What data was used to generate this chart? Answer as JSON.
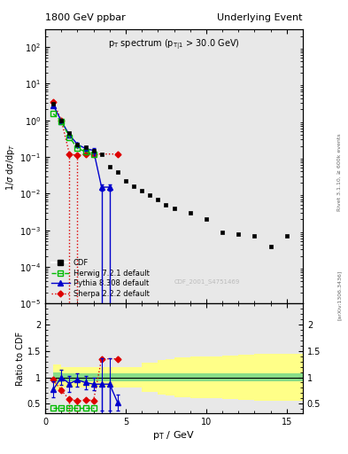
{
  "title_left": "1800 GeV ppbar",
  "title_right": "Underlying Event",
  "main_title": "p_{T} spectrum (p_{T|1} > 30.0 GeV)",
  "xlabel": "p_{T} / GeV",
  "ylabel_main": "1/σ dσ/dp_{T}",
  "ylabel_ratio": "Ratio to CDF",
  "watermark": "CDF_2001_S4751469",
  "cdf_x": [
    0.5,
    1.0,
    1.5,
    2.0,
    2.5,
    3.0,
    3.5,
    4.0,
    4.5,
    5.0,
    5.5,
    6.0,
    6.5,
    7.0,
    7.5,
    8.0,
    9.0,
    10.0,
    11.0,
    12.0,
    13.0,
    14.0,
    15.0
  ],
  "cdf_y": [
    2.8,
    1.0,
    0.45,
    0.22,
    0.18,
    0.15,
    0.12,
    0.055,
    0.038,
    0.022,
    0.016,
    0.012,
    0.009,
    0.007,
    0.005,
    0.004,
    0.003,
    0.002,
    0.0009,
    0.0008,
    0.0007,
    0.00035,
    0.0007
  ],
  "herwig_x": [
    0.5,
    1.0,
    1.5,
    2.0,
    2.5,
    3.0
  ],
  "herwig_y": [
    1.5,
    0.95,
    0.35,
    0.17,
    0.14,
    0.12
  ],
  "pythia_x": [
    0.5,
    1.0,
    1.5,
    2.0,
    2.5,
    3.0,
    3.5,
    4.0
  ],
  "pythia_y": [
    2.6,
    0.95,
    0.4,
    0.22,
    0.17,
    0.15,
    0.015,
    0.015
  ],
  "pythia_yerr": [
    0.3,
    0.1,
    0.05,
    0.03,
    0.02,
    0.02,
    0.003,
    0.003
  ],
  "sherpa_x": [
    0.5,
    1.0,
    1.5,
    2.0,
    2.5,
    3.0,
    4.5
  ],
  "sherpa_y": [
    3.2,
    1.0,
    0.12,
    0.11,
    0.12,
    0.12,
    0.12
  ],
  "herwig_ratio_x": [
    0.5,
    1.0,
    1.5,
    2.0,
    2.5,
    3.0
  ],
  "herwig_ratio_y": [
    0.42,
    0.42,
    0.42,
    0.42,
    0.42,
    0.42
  ],
  "pythia_ratio_x": [
    0.5,
    1.0,
    1.5,
    2.0,
    2.5,
    3.0,
    3.5,
    4.0,
    4.5
  ],
  "pythia_ratio_y": [
    0.77,
    1.0,
    0.88,
    0.95,
    0.9,
    0.87,
    0.87,
    0.87,
    0.52
  ],
  "pythia_ratio_yerr": [
    0.15,
    0.15,
    0.15,
    0.12,
    0.12,
    0.12,
    0.5,
    0.5,
    0.15
  ],
  "sherpa_ratio_x": [
    0.5,
    1.0,
    1.5,
    2.0,
    2.5,
    3.0,
    3.5,
    4.5
  ],
  "sherpa_ratio_y": [
    0.95,
    0.75,
    0.58,
    0.55,
    0.57,
    0.56,
    1.35,
    1.35
  ],
  "band_edges": [
    0.5,
    1.0,
    1.5,
    2.0,
    2.5,
    3.0,
    3.5,
    4.0,
    5.0,
    6.0,
    7.0,
    7.5,
    8.0,
    9.0,
    10.0,
    11.0,
    12.0,
    13.0,
    14.0,
    15.0,
    16.0
  ],
  "band_green_lo": [
    0.9,
    0.93,
    0.93,
    0.93,
    0.93,
    0.93,
    0.93,
    0.93,
    0.93,
    0.93,
    0.93,
    0.93,
    0.93,
    0.93,
    0.93,
    0.93,
    0.93,
    0.93,
    0.93,
    0.93
  ],
  "band_green_hi": [
    1.1,
    1.07,
    1.07,
    1.07,
    1.07,
    1.07,
    1.07,
    1.07,
    1.07,
    1.07,
    1.07,
    1.07,
    1.07,
    1.07,
    1.07,
    1.07,
    1.07,
    1.07,
    1.07,
    1.07
  ],
  "band_yellow_lo": [
    0.75,
    0.8,
    0.8,
    0.8,
    0.8,
    0.8,
    0.8,
    0.8,
    0.8,
    0.72,
    0.68,
    0.65,
    0.62,
    0.6,
    0.6,
    0.58,
    0.57,
    0.56,
    0.55,
    0.55
  ],
  "band_yellow_hi": [
    1.25,
    1.2,
    1.2,
    1.2,
    1.2,
    1.2,
    1.2,
    1.2,
    1.2,
    1.28,
    1.32,
    1.35,
    1.38,
    1.4,
    1.4,
    1.42,
    1.43,
    1.44,
    1.45,
    1.45
  ],
  "cdf_color": "#000000",
  "herwig_color": "#00bb00",
  "pythia_color": "#0000cc",
  "sherpa_color": "#dd0000",
  "xlim": [
    0,
    16
  ],
  "ylim_main": [
    1e-05,
    300
  ],
  "ylim_ratio": [
    0.32,
    2.4
  ],
  "bg_color": "#e8e8e8"
}
